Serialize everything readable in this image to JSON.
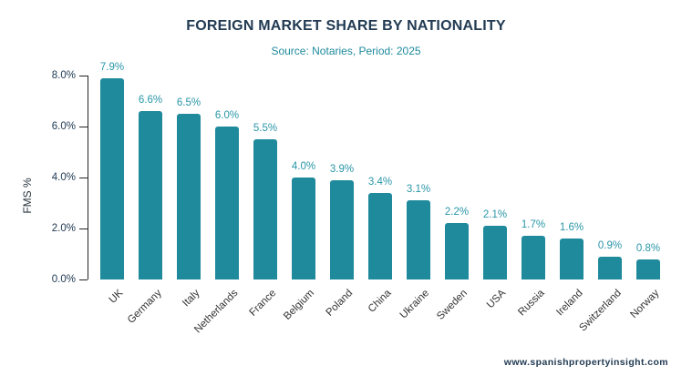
{
  "header": {
    "title": "FOREIGN MARKET SHARE BY NATIONALITY",
    "subtitle": "Source: Notaries, Period: 2025"
  },
  "footer": {
    "website": "www.spanishpropertyinsight.com"
  },
  "chart_data": {
    "type": "bar",
    "title": "FOREIGN MARKET SHARE BY NATIONALITY",
    "subtitle": "Source: Notaries, Period: 2025",
    "xlabel": "",
    "ylabel": "FMS %",
    "categories": [
      "UK",
      "Germany",
      "Italy",
      "Netherlands",
      "France",
      "Belgium",
      "Poland",
      "China",
      "Ukraine",
      "Sweden",
      "USA",
      "Russia",
      "Ireland",
      "Switzerland",
      "Norway"
    ],
    "values": [
      7.9,
      6.6,
      6.5,
      6.0,
      5.5,
      4.0,
      3.9,
      3.4,
      3.1,
      2.2,
      2.1,
      1.7,
      1.6,
      0.9,
      0.8
    ],
    "value_labels": [
      "7.9%",
      "6.6%",
      "6.5%",
      "6.0%",
      "5.5%",
      "4.0%",
      "3.9%",
      "3.4%",
      "3.1%",
      "2.2%",
      "2.1%",
      "1.7%",
      "1.6%",
      "0.9%",
      "0.8%"
    ],
    "ylim": [
      0,
      8
    ],
    "yticks": [
      {
        "value": 0,
        "label": "0.0%"
      },
      {
        "value": 2,
        "label": "2.0%"
      },
      {
        "value": 4,
        "label": "4.0%"
      },
      {
        "value": 6,
        "label": "6.0%"
      },
      {
        "value": 8,
        "label": "8.0%"
      }
    ],
    "grid": false,
    "legend": null,
    "bar_color": "#1e8a9c",
    "value_label_color": "#2a96a8"
  }
}
